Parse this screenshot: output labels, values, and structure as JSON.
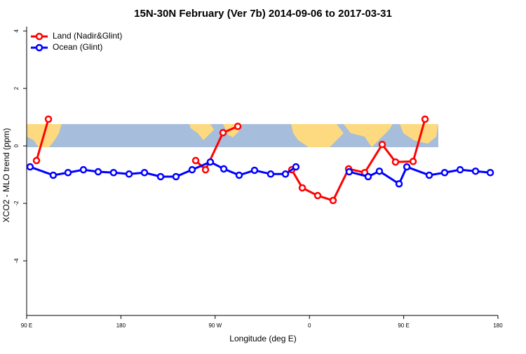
{
  "chart_data": {
    "type": "line",
    "title": "15N-30N February (Ver 7b)   2014-09-06 to 2017-03-31",
    "x_label": "Longitude (deg E)",
    "y_label": "XCO2 - MLO trend (ppm)",
    "xlim": [
      90,
      540
    ],
    "xticks": [
      {
        "value": 90,
        "label": "90 E"
      },
      {
        "value": 180,
        "label": "180"
      },
      {
        "value": 270,
        "label": "90 W"
      },
      {
        "value": 360,
        "label": "0"
      },
      {
        "value": 450,
        "label": "90 E"
      },
      {
        "value": 540,
        "label": "180"
      }
    ],
    "ylim": [
      -5.9,
      4.15
    ],
    "yticks": [
      -4,
      -2,
      0,
      2,
      4
    ],
    "legend": "top-left",
    "series": [
      {
        "name": "Land (Nadir&Glint)",
        "color": "#ff0000",
        "x": [
          99.4,
          110.8,
          180,
          251.4,
          260.8,
          277.5,
          291.6,
          320,
          343.1,
          353.2,
          367.9,
          382.6,
          397.4,
          412.8,
          429.5,
          442.2,
          459,
          470.4
        ],
        "values": [
          -0.51,
          0.93,
          null,
          -0.51,
          -0.83,
          0.46,
          0.68,
          null,
          -0.83,
          -1.46,
          -1.73,
          -1.9,
          -0.8,
          -0.93,
          0.05,
          -0.56,
          -0.54,
          0.93
        ]
      },
      {
        "name": "Ocean (Glint)",
        "color": "#0000ff",
        "x": [
          93.3,
          115.4,
          129.5,
          144.2,
          158.3,
          173,
          187.8,
          202.5,
          217.9,
          232.6,
          248,
          265.4,
          278.2,
          292.9,
          307.6,
          323,
          337.1,
          347.1,
          370,
          398,
          416.1,
          426.8,
          445.6,
          453,
          474.4,
          489.1,
          503.9,
          518.6,
          532.7
        ],
        "values": [
          -0.73,
          -1.02,
          -0.93,
          -0.83,
          -0.9,
          -0.93,
          -0.98,
          -0.93,
          -1.07,
          -1.07,
          -0.83,
          -0.56,
          -0.8,
          -1.02,
          -0.85,
          -0.98,
          -0.98,
          -0.73,
          null,
          -0.9,
          -1.07,
          -0.88,
          -1.32,
          -0.73,
          -1.02,
          -0.93,
          -0.83,
          -0.88,
          -0.93
        ]
      }
    ]
  }
}
